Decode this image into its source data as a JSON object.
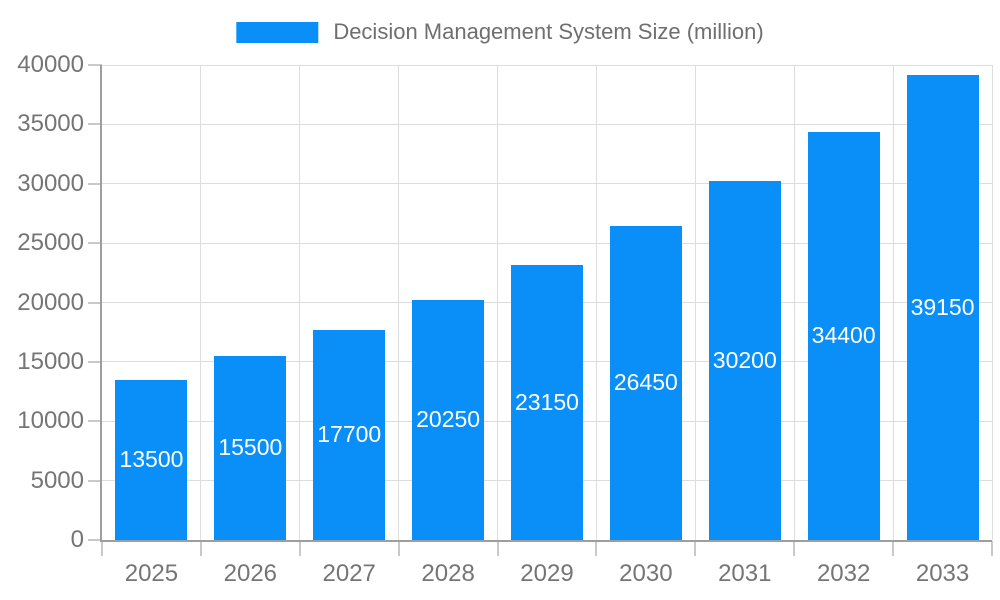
{
  "chart_data": {
    "type": "bar",
    "title": "Decision Management System Size (million)",
    "categories": [
      "2025",
      "2026",
      "2027",
      "2028",
      "2029",
      "2030",
      "2031",
      "2032",
      "2033"
    ],
    "values": [
      13500,
      15500,
      17700,
      20250,
      23150,
      26450,
      30200,
      34400,
      39150
    ],
    "series": [
      {
        "name": "Decision Management System Size (million)",
        "values": [
          13500,
          15500,
          17700,
          20250,
          23150,
          26450,
          30200,
          34400,
          39150
        ]
      }
    ],
    "xlabel": "",
    "ylabel": "",
    "ylim": [
      0,
      40000
    ],
    "yticks": [
      0,
      5000,
      10000,
      15000,
      20000,
      25000,
      30000,
      35000,
      40000
    ],
    "grid": true,
    "legend_position": "top-center",
    "bar_label_position": "inside-center",
    "colors": {
      "bar": "#0a8ff9",
      "bar_label": "#ffffff",
      "axis_text": "#757575",
      "legend_text": "#6f6f6f",
      "grid_line": "#dddddd",
      "axis_line": "#9e9e9e",
      "tick_mark": "#c9c9c9",
      "background": "#ffffff"
    }
  }
}
